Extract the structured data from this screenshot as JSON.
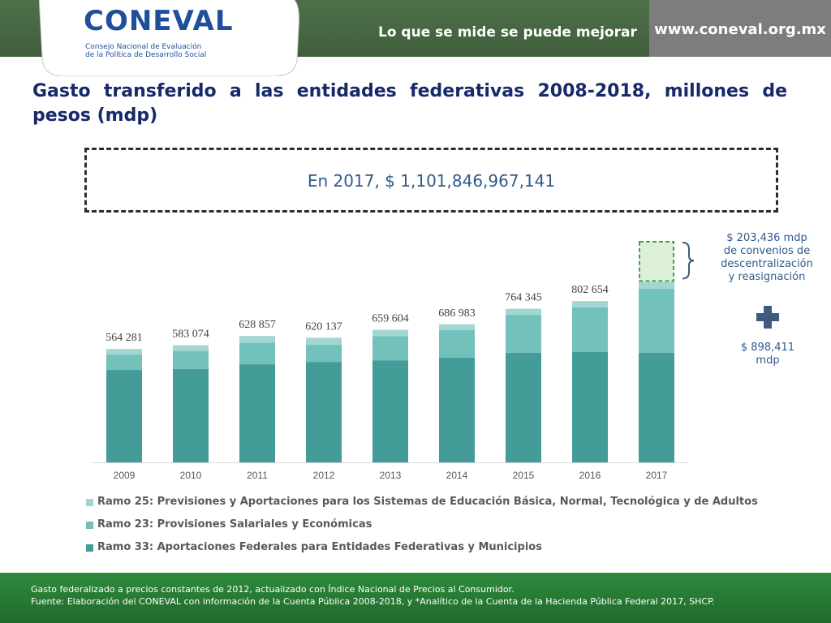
{
  "header": {
    "logo_word": "CONEVAL",
    "logo_sub_1": "Consejo Nacional de Evaluación",
    "logo_sub_2": "de la Política de Desarrollo Social",
    "tagline": "Lo que se mide se puede mejorar",
    "url": "www.coneval.org.mx"
  },
  "title": "Gasto transferido a las entidades federativas 2008-2018, millones de pesos (mdp)",
  "callout": "En 2017, $ 1,101,846,967,141",
  "notes": {
    "top": [
      "$ 203,436 mdp",
      "de convenios de",
      "descentralización",
      "y reasignación"
    ],
    "bottom": [
      "$ 898,411",
      "mdp"
    ]
  },
  "chart_data": {
    "type": "bar",
    "stacked": true,
    "categories": [
      "2009",
      "2010",
      "2011",
      "2012",
      "2013",
      "2014",
      "2015",
      "2016",
      "2017"
    ],
    "series": [
      {
        "name": "Ramo 33: Aportaciones Federales para Entidades Federativas y Municipios",
        "values": [
          460000,
          465000,
          488000,
          500000,
          508000,
          522000,
          546000,
          550000,
          546000
        ]
      },
      {
        "name": "Ramo 23: Provisiones Salariales y Económicas",
        "values": [
          76000,
          88000,
          108000,
          85000,
          120000,
          136000,
          188000,
          222000,
          318000
        ]
      },
      {
        "name": "Ramo 25: Previsiones y Aportaciones para los Sistemas de Educación Básica, Normal, Tecnológica y de Adultos",
        "values": [
          28281,
          30074,
          32857,
          35137,
          31604,
          28983,
          30345,
          30654,
          34411
        ]
      }
    ],
    "data_labels": [
      "564 281",
      "583 074",
      "628 857",
      "620 137",
      "659 604",
      "686 983",
      "764 345",
      "802 654",
      ""
    ],
    "highlight": {
      "category": "2017",
      "value": 203436
    },
    "ylim": [
      0,
      1101847
    ],
    "legend_position": "bottom",
    "grid": false,
    "colors": [
      "#449c99",
      "#72c1bb",
      "#a2d6d2"
    ],
    "highlight_colors": {
      "fill": "#dff0d8",
      "border": "#3aa84a"
    }
  },
  "footer": {
    "line1": "Gasto federalizado a precios constantes de 2012, actualizado con Índice Nacional de Precios al Consumidor.",
    "line2": "Fuente: Elaboración del CONEVAL con información de la Cuenta Pública 2008-2018,  y *Analítico de la Cuenta de la Hacienda Pública Federal 2017, SHCP."
  }
}
